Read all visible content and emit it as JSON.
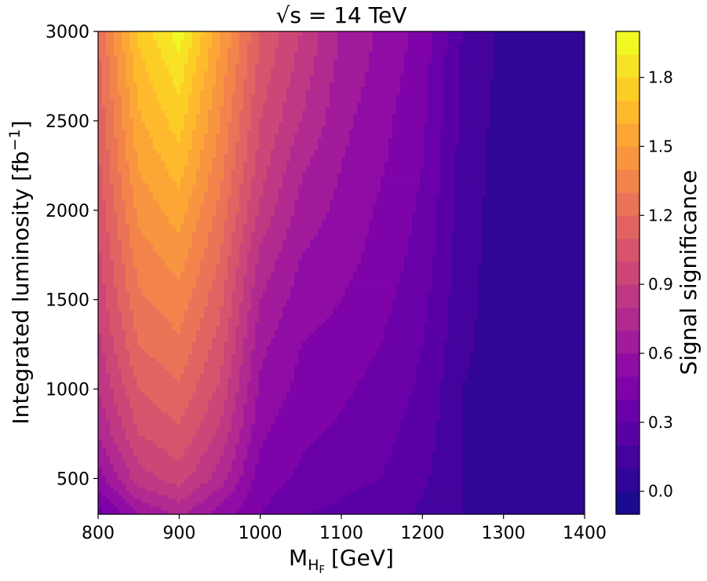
{
  "chart_data": {
    "type": "heatmap",
    "title": "√s = 14 TeV",
    "xlabel": "M",
    "xlabel_sub": "H",
    "xlabel_subsub": "F",
    "xlabel_unit": "[GeV]",
    "ylabel": "Integrated luminosity [fb",
    "ylabel_sup": "−1",
    "ylabel_close": "]",
    "colorbar_label": "Signal significance",
    "xlim": [
      800,
      1400
    ],
    "ylim": [
      300,
      3000
    ],
    "x_ticks": [
      800,
      900,
      1000,
      1100,
      1200,
      1300,
      1400
    ],
    "x_tick_labels": [
      "800",
      "900",
      "1000",
      "1100",
      "1200",
      "1300",
      "1400"
    ],
    "y_ticks": [
      500,
      1000,
      1500,
      2000,
      2500,
      3000
    ],
    "y_tick_labels": [
      "500",
      "1000",
      "1500",
      "2000",
      "2500",
      "3000"
    ],
    "colorbar_range": [
      -0.1,
      2.0
    ],
    "colorbar_ticks": [
      0.0,
      0.3,
      0.6,
      0.9,
      1.2,
      1.5,
      1.8
    ],
    "colorbar_tick_labels": [
      "0.0",
      "0.3",
      "0.6",
      "0.9",
      "1.2",
      "1.5",
      "1.8"
    ],
    "contour_levels": [
      -0.1,
      0.0,
      0.1,
      0.2,
      0.3,
      0.4,
      0.5,
      0.6,
      0.7,
      0.8,
      0.9,
      1.0,
      1.1,
      1.2,
      1.3,
      1.4,
      1.5,
      1.6,
      1.7,
      1.8,
      1.9,
      2.0
    ],
    "colormap": "plasma",
    "level_colors": [
      "#1a0b8f",
      "#300597",
      "#45039e",
      "#5901a5",
      "#6a00a8",
      "#7e03a8",
      "#8f0da4",
      "#a11b9b",
      "#b12a90",
      "#be3883",
      "#cc4778",
      "#d6556d",
      "#e16462",
      "#ea7457",
      "#f2844b",
      "#f89540",
      "#fca636",
      "#feb92d",
      "#fccd25",
      "#f7e225",
      "#f0f921"
    ],
    "grid_x": [
      800,
      850,
      900,
      950,
      1000,
      1050,
      1100,
      1150,
      1200,
      1250,
      1300,
      1350,
      1400
    ],
    "grid_y": [
      300,
      500,
      750,
      1000,
      1250,
      1500,
      1750,
      2000,
      2250,
      2500,
      2750,
      3000
    ],
    "z": [
      [
        0.35,
        0.6,
        0.72,
        0.55,
        0.4,
        0.3,
        0.28,
        0.25,
        0.18,
        0.1,
        0.08,
        0.08,
        0.1
      ],
      [
        0.55,
        0.85,
        0.95,
        0.75,
        0.45,
        0.38,
        0.32,
        0.3,
        0.22,
        0.1,
        0.05,
        0.05,
        0.08
      ],
      [
        0.7,
        1.0,
        1.08,
        0.88,
        0.52,
        0.42,
        0.38,
        0.33,
        0.25,
        0.1,
        0.05,
        0.05,
        0.08
      ],
      [
        0.8,
        1.1,
        1.18,
        0.98,
        0.58,
        0.47,
        0.42,
        0.36,
        0.28,
        0.1,
        0.04,
        0.05,
        0.08
      ],
      [
        0.87,
        1.2,
        1.28,
        1.06,
        0.63,
        0.5,
        0.46,
        0.4,
        0.3,
        0.12,
        0.05,
        0.05,
        0.08
      ],
      [
        0.93,
        1.28,
        1.36,
        1.13,
        0.7,
        0.55,
        0.5,
        0.43,
        0.33,
        0.13,
        0.05,
        0.05,
        0.08
      ],
      [
        0.98,
        1.35,
        1.45,
        1.2,
        0.78,
        0.6,
        0.54,
        0.46,
        0.36,
        0.14,
        0.05,
        0.05,
        0.08
      ],
      [
        1.03,
        1.43,
        1.55,
        1.27,
        0.88,
        0.66,
        0.57,
        0.48,
        0.38,
        0.15,
        0.05,
        0.05,
        0.08
      ],
      [
        1.08,
        1.51,
        1.65,
        1.34,
        0.95,
        0.72,
        0.6,
        0.51,
        0.4,
        0.16,
        0.06,
        0.06,
        0.08
      ],
      [
        1.12,
        1.58,
        1.75,
        1.4,
        1.0,
        0.8,
        0.63,
        0.53,
        0.42,
        0.17,
        0.06,
        0.06,
        0.08
      ],
      [
        1.16,
        1.65,
        1.84,
        1.46,
        1.05,
        0.85,
        0.66,
        0.56,
        0.44,
        0.18,
        0.07,
        0.07,
        0.08
      ],
      [
        1.2,
        1.72,
        1.95,
        1.52,
        1.1,
        0.9,
        0.69,
        0.58,
        0.46,
        0.19,
        0.07,
        0.07,
        0.08
      ]
    ]
  }
}
